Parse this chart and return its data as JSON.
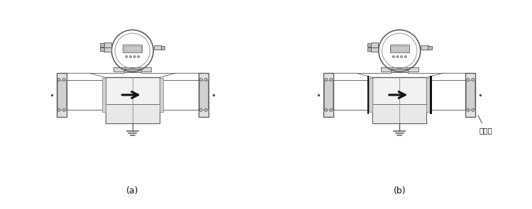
{
  "label_a": "(a)",
  "label_b": "(b)",
  "annotation_b": "接地环",
  "bg_color": "#ffffff",
  "lc": "#888888",
  "dc": "#555555",
  "black": "#111111",
  "figsize": [
    7.5,
    2.95
  ],
  "dpi": 100
}
